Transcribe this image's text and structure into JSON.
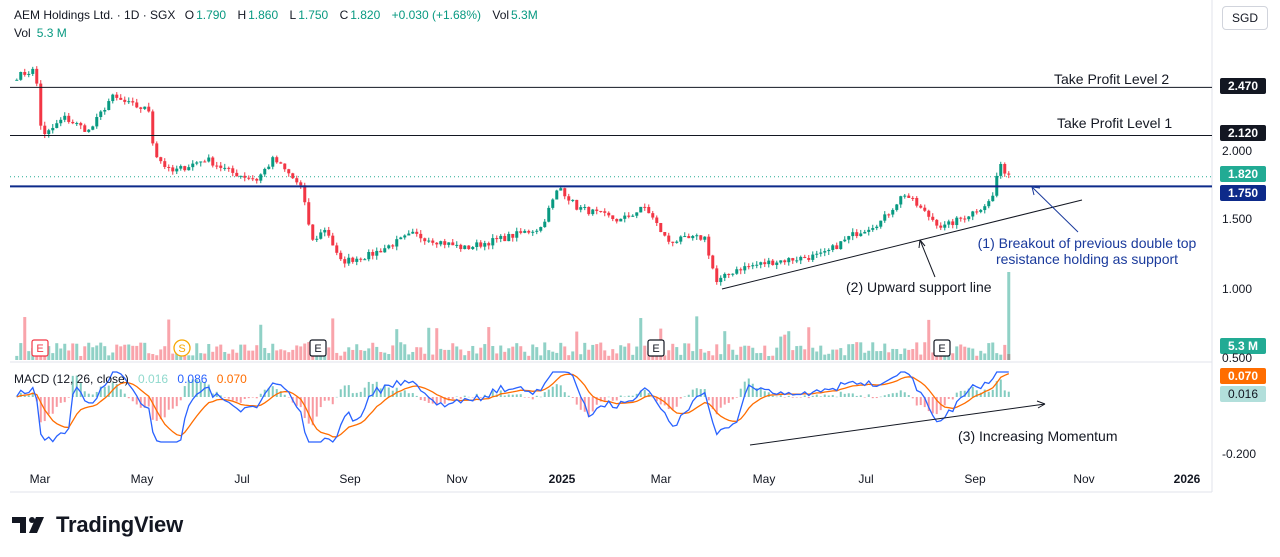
{
  "header": {
    "symbol": "AEM Holdings Ltd. · 1D · SGX",
    "open_label": "O",
    "open": "1.790",
    "high_label": "H",
    "high": "1.860",
    "low_label": "L",
    "low": "1.750",
    "close_label": "C",
    "close": "1.820",
    "change": "+0.030 (+1.68%)",
    "vol_label": "Vol",
    "vol": "5.3M"
  },
  "volume_legend": {
    "label": "Vol",
    "value": "5.3 M"
  },
  "currency": "SGD",
  "macd_legend": {
    "label": "MACD (12, 26, close)",
    "hist": "0.016",
    "macd": "0.086",
    "signal": "0.070"
  },
  "annotations": {
    "tp2": "Take Profit Level 2",
    "tp1": "Take Profit Level 1",
    "a1_line1": "(1) Breakout of previous double top",
    "a1_line2": "resistance holding as support",
    "a2": "(2) Upward support line",
    "a3": "(3) Increasing Momentum"
  },
  "price_tags": {
    "tp2": "2.470",
    "tp1": "2.120",
    "last": "1.820",
    "support": "1.750",
    "volume": "5.3 M",
    "signal": "0.070",
    "hist": "0.016"
  },
  "y_ticks": [
    "2.000",
    "1.500",
    "1.000",
    "0.500",
    "-0.200"
  ],
  "x_ticks": [
    "Mar",
    "May",
    "Jul",
    "Sep",
    "Nov",
    "2025",
    "Mar",
    "May",
    "Jul",
    "Sep",
    "Nov",
    "2026"
  ],
  "event_markers": [
    "E",
    "S",
    "E",
    "E",
    "E"
  ],
  "brand": "TradingView",
  "colors": {
    "up": "#089981",
    "down": "#f23645",
    "macd": "#2962ff",
    "signal": "#ff6d00",
    "support": "#0d2a8a",
    "last": "#22ab94"
  },
  "chart_data": {
    "type": "candlestick",
    "title": "AEM Holdings Ltd. · 1D · SGX",
    "ylim": [
      0.9,
      2.65
    ],
    "horizontal_levels": [
      {
        "name": "Take Profit Level 2",
        "value": 2.47
      },
      {
        "name": "Take Profit Level 1",
        "value": 2.12
      },
      {
        "name": "support",
        "value": 1.75
      }
    ],
    "close_path": [
      [
        "2024-02-19",
        2.55
      ],
      [
        "2024-03-01",
        2.6
      ],
      [
        "2024-03-05",
        2.1
      ],
      [
        "2024-03-18",
        2.25
      ],
      [
        "2024-04-02",
        2.15
      ],
      [
        "2024-04-15",
        2.4
      ],
      [
        "2024-04-25",
        2.35
      ],
      [
        "2024-05-08",
        2.3
      ],
      [
        "2024-05-10",
        2.0
      ],
      [
        "2024-05-20",
        1.85
      ],
      [
        "2024-06-10",
        1.95
      ],
      [
        "2024-06-25",
        1.85
      ],
      [
        "2024-07-10",
        1.8
      ],
      [
        "2024-07-20",
        1.95
      ],
      [
        "2024-08-05",
        1.75
      ],
      [
        "2024-08-12",
        1.35
      ],
      [
        "2024-08-20",
        1.45
      ],
      [
        "2024-08-28",
        1.2
      ],
      [
        "2024-09-15",
        1.25
      ],
      [
        "2024-10-10",
        1.4
      ],
      [
        "2024-11-10",
        1.3
      ],
      [
        "2024-12-05",
        1.38
      ],
      [
        "2024-12-25",
        1.45
      ],
      [
        "2025-01-05",
        1.75
      ],
      [
        "2025-01-15",
        1.6
      ],
      [
        "2025-02-10",
        1.5
      ],
      [
        "2025-02-25",
        1.6
      ],
      [
        "2025-03-10",
        1.35
      ],
      [
        "2025-04-01",
        1.38
      ],
      [
        "2025-04-08",
        1.05
      ],
      [
        "2025-04-20",
        1.15
      ],
      [
        "2025-05-10",
        1.2
      ],
      [
        "2025-06-10",
        1.25
      ],
      [
        "2025-06-28",
        1.4
      ],
      [
        "2025-07-15",
        1.5
      ],
      [
        "2025-07-28",
        1.7
      ],
      [
        "2025-08-10",
        1.55
      ],
      [
        "2025-08-20",
        1.45
      ],
      [
        "2025-09-05",
        1.55
      ],
      [
        "2025-09-18",
        1.65
      ],
      [
        "2025-09-22",
        1.9
      ],
      [
        "2025-09-30",
        1.82
      ]
    ],
    "volume_last": "5.3 M",
    "macd": {
      "fast": 12,
      "slow": 26,
      "source": "close",
      "hist": 0.016,
      "macd": 0.086,
      "signal": 0.07
    },
    "x_ticks": [
      "Mar",
      "May",
      "Jul",
      "Sep",
      "Nov",
      "2025",
      "Mar",
      "May",
      "Jul",
      "Sep",
      "Nov",
      "2026"
    ],
    "grid": false
  }
}
